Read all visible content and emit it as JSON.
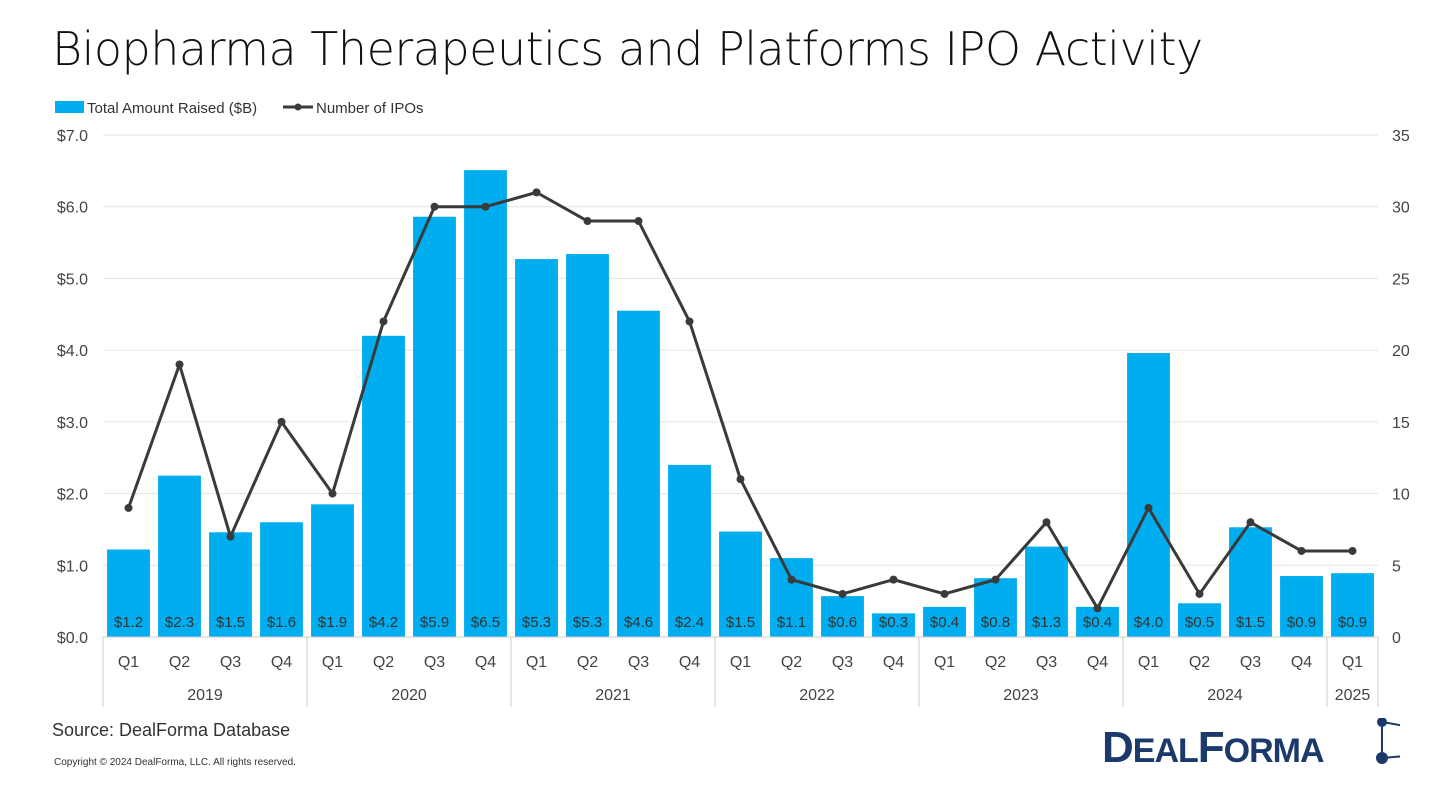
{
  "title": "Biopharma Therapeutics and Platforms IPO Activity",
  "source": "Source: DealForma Database",
  "copyright": "Copyright © 2024 DealForma, LLC. All rights reserved.",
  "logo_text": "DealForma",
  "colors": {
    "bar": "#00AEEF",
    "line": "#3a3a3a",
    "grid": "#e3e3e3",
    "logo": "#1b3a6b"
  },
  "chart_data": {
    "type": "bar",
    "title": "Biopharma Therapeutics and Platforms IPO Activity",
    "legend": [
      "Total Amount Raised ($B)",
      "Number of IPOs"
    ],
    "legend_position": "top-left",
    "quarters": [
      "Q1",
      "Q2",
      "Q3",
      "Q4",
      "Q1",
      "Q2",
      "Q3",
      "Q4",
      "Q1",
      "Q2",
      "Q3",
      "Q4",
      "Q1",
      "Q2",
      "Q3",
      "Q4",
      "Q1",
      "Q2",
      "Q3",
      "Q4",
      "Q1",
      "Q2",
      "Q3",
      "Q4",
      "Q1"
    ],
    "years": [
      {
        "label": "2019",
        "span": 4
      },
      {
        "label": "2020",
        "span": 4
      },
      {
        "label": "2021",
        "span": 4
      },
      {
        "label": "2022",
        "span": 4
      },
      {
        "label": "2023",
        "span": 4
      },
      {
        "label": "2024",
        "span": 4
      },
      {
        "label": "2025",
        "span": 1
      }
    ],
    "series": [
      {
        "name": "Total Amount Raised ($B)",
        "type": "bar",
        "axis": "left",
        "values": [
          1.22,
          2.25,
          1.46,
          1.6,
          1.85,
          4.2,
          5.86,
          6.51,
          5.27,
          5.34,
          4.55,
          2.4,
          1.47,
          1.1,
          0.57,
          0.33,
          0.42,
          0.82,
          1.26,
          0.42,
          3.96,
          0.47,
          1.53,
          0.85,
          0.89
        ],
        "labels": [
          "$1.2",
          "$2.3",
          "$1.5",
          "$1.6",
          "$1.9",
          "$4.2",
          "$5.9",
          "$6.5",
          "$5.3",
          "$5.3",
          "$4.6",
          "$2.4",
          "$1.5",
          "$1.1",
          "$0.6",
          "$0.3",
          "$0.4",
          "$0.8",
          "$1.3",
          "$0.4",
          "$4.0",
          "$0.5",
          "$1.5",
          "$0.9",
          "$0.9"
        ]
      },
      {
        "name": "Number of IPOs",
        "type": "line",
        "axis": "right",
        "values": [
          9,
          19,
          7,
          15,
          10,
          22,
          30,
          30,
          31,
          29,
          29,
          22,
          11,
          4,
          3,
          4,
          3,
          4,
          8,
          2,
          9,
          3,
          8,
          6,
          6
        ]
      }
    ],
    "left_axis": {
      "min": 0,
      "max": 7,
      "step": 1,
      "ticks": [
        "$0.0",
        "$1.0",
        "$2.0",
        "$3.0",
        "$4.0",
        "$5.0",
        "$6.0",
        "$7.0"
      ]
    },
    "right_axis": {
      "min": 0,
      "max": 35,
      "step": 5,
      "ticks": [
        "0",
        "5",
        "10",
        "15",
        "20",
        "25",
        "30",
        "35"
      ]
    },
    "grid": true
  }
}
